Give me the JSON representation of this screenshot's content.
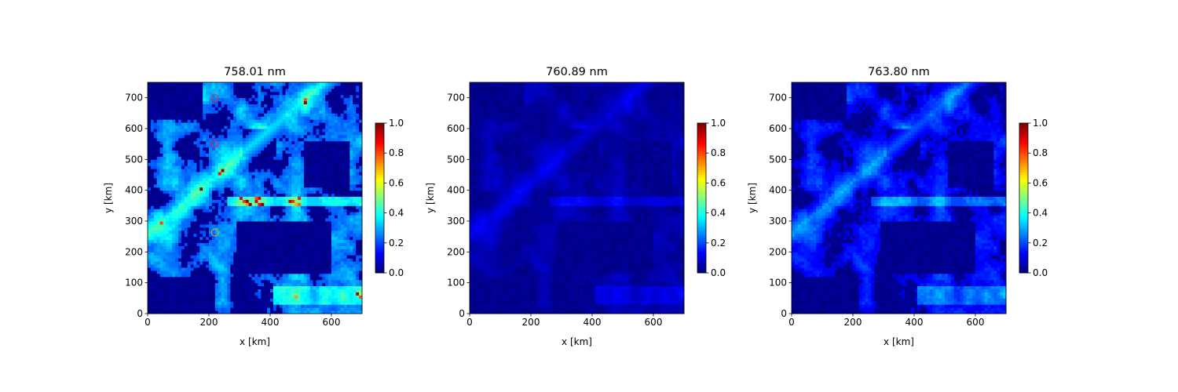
{
  "chart_data": [
    {
      "type": "heatmap",
      "title": "758.01 nm",
      "xlabel": "x [km]",
      "ylabel": "y [km]",
      "xlim": [
        0,
        700
      ],
      "ylim": [
        0,
        750
      ],
      "xticks": [
        0,
        200,
        400,
        600
      ],
      "yticks": [
        0,
        100,
        200,
        300,
        400,
        500,
        600,
        700
      ],
      "colormap": "jet",
      "clim": [
        0,
        1.0
      ],
      "colorbar_ticks": [
        "0.0",
        "0.2",
        "0.4",
        "0.6",
        "0.8",
        "1.0"
      ],
      "typical_range": [
        0.15,
        0.4
      ],
      "max_value": 1.0,
      "markers": [
        {
          "x": 218,
          "y": 700,
          "color": "#ff2020"
        },
        {
          "x": 218,
          "y": 550,
          "color": "#ff2020"
        },
        {
          "x": 220,
          "y": 263,
          "color": "#ffa500"
        }
      ]
    },
    {
      "type": "heatmap",
      "title": "760.89 nm",
      "xlabel": "x [km]",
      "ylabel": "y [km]",
      "xlim": [
        0,
        700
      ],
      "ylim": [
        0,
        750
      ],
      "xticks": [
        0,
        200,
        400,
        600
      ],
      "yticks": [
        0,
        100,
        200,
        300,
        400,
        500,
        600,
        700
      ],
      "colormap": "jet",
      "clim": [
        0,
        1.0
      ],
      "colorbar_ticks": [
        "0.0",
        "0.2",
        "0.4",
        "0.6",
        "0.8",
        "1.0"
      ],
      "typical_range": [
        0.0,
        0.1
      ],
      "max_value": 0.25,
      "markers": []
    },
    {
      "type": "heatmap",
      "title": "763.80 nm",
      "xlabel": "x [km]",
      "ylabel": "y [km]",
      "xlim": [
        0,
        700
      ],
      "ylim": [
        0,
        750
      ],
      "xticks": [
        0,
        200,
        400,
        600
      ],
      "yticks": [
        0,
        100,
        200,
        300,
        400,
        500,
        600,
        700
      ],
      "colormap": "jet",
      "clim": [
        0,
        1.0
      ],
      "colorbar_ticks": [
        "0.0",
        "0.2",
        "0.4",
        "0.6",
        "0.8",
        "1.0"
      ],
      "typical_range": [
        0.05,
        0.25
      ],
      "max_value": 0.45,
      "markers": []
    }
  ]
}
